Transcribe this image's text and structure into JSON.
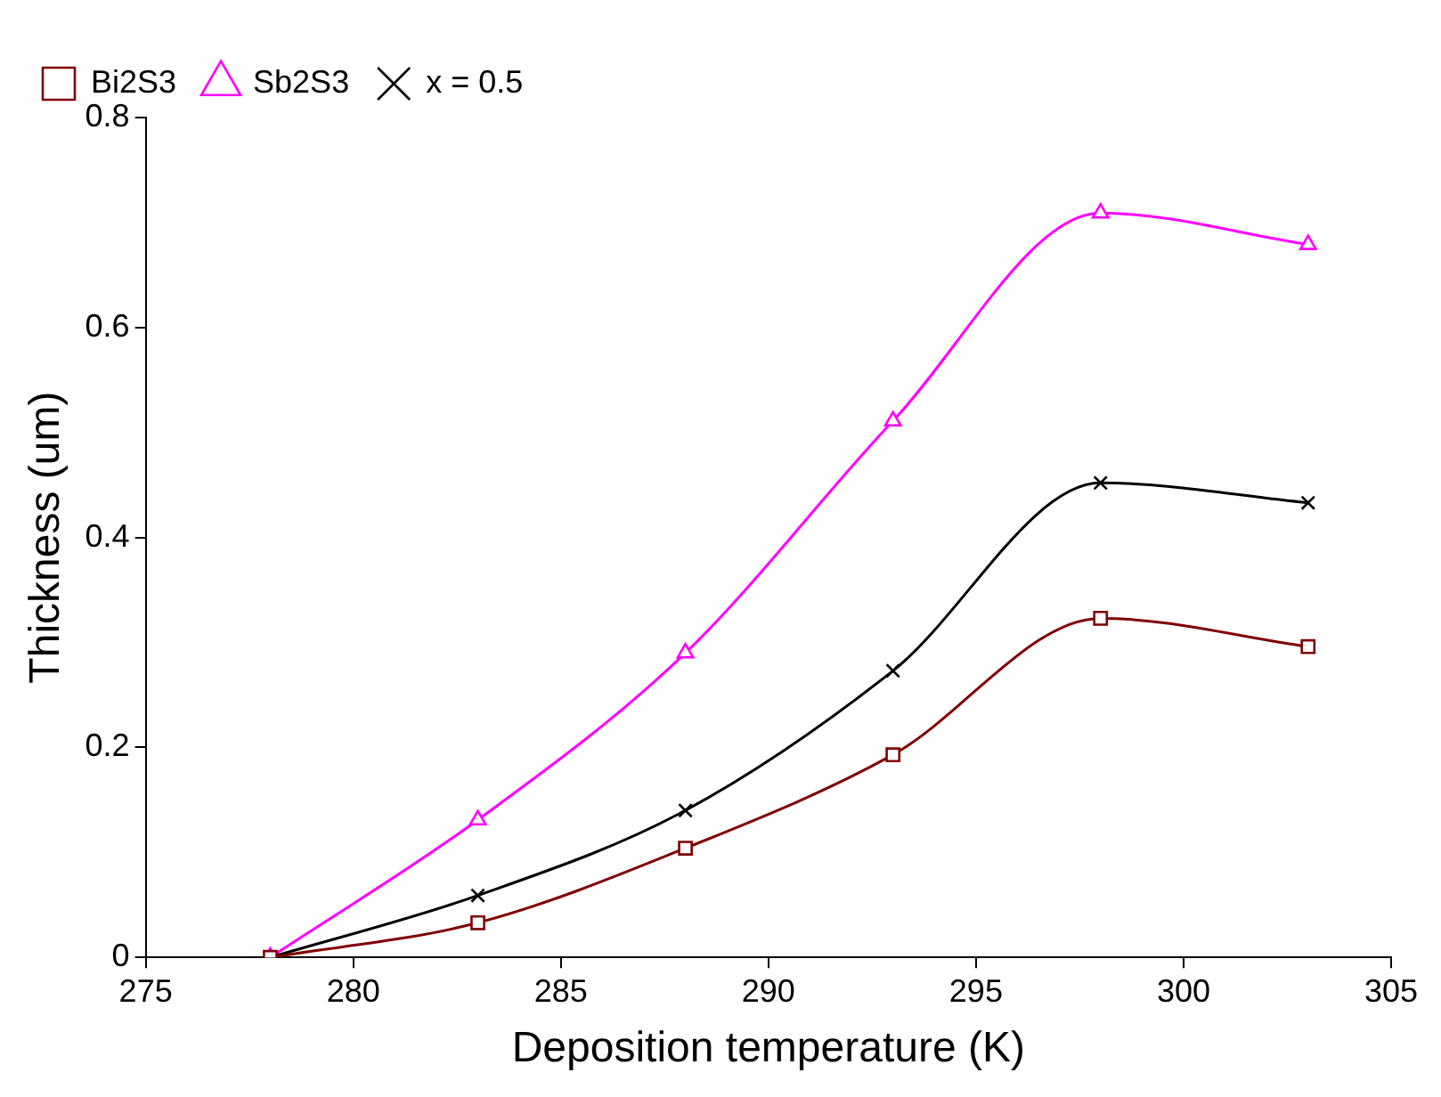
{
  "chart_data": {
    "type": "line",
    "xlabel": "Deposition temperature (K)",
    "ylabel": "Thickness (um)",
    "x": [
      278,
      283,
      288,
      293,
      298,
      303
    ],
    "series": [
      {
        "name": "Bi2S3",
        "color": "#800000",
        "marker": "square",
        "values": [
          0,
          0.033,
          0.104,
          0.193,
          0.323,
          0.296
        ]
      },
      {
        "name": "Sb2S3",
        "color": "#ff00ff",
        "marker": "triangle",
        "values": [
          0,
          0.131,
          0.29,
          0.511,
          0.709,
          0.679
        ]
      },
      {
        "name": "x = 0.5",
        "color": "#000000",
        "marker": "cross",
        "values": [
          0,
          0.059,
          0.14,
          0.273,
          0.452,
          0.433
        ]
      }
    ],
    "xlim": [
      275,
      305
    ],
    "xticks": [
      275,
      280,
      285,
      290,
      295,
      300,
      305
    ],
    "ylim": [
      0,
      0.8
    ],
    "yticks": [
      0,
      0.2,
      0.4,
      0.6,
      0.8
    ],
    "grid": false,
    "legend": "top left"
  }
}
